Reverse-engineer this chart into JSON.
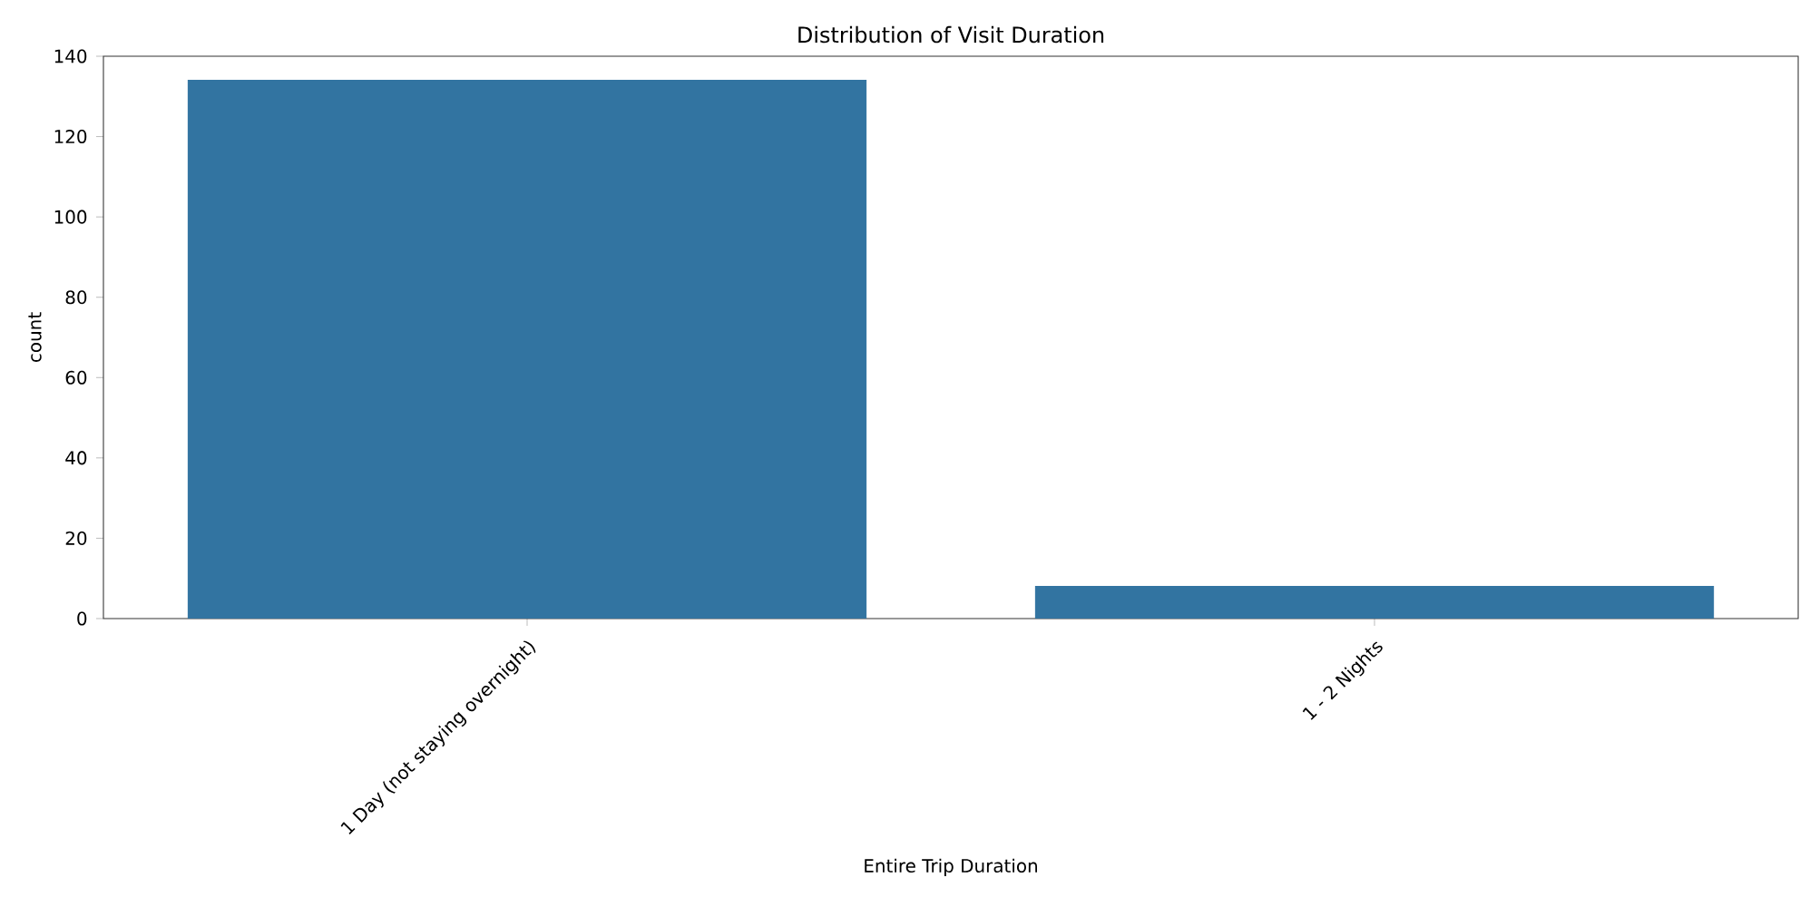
{
  "chart_data": {
    "type": "bar",
    "title": "Distribution of Visit Duration",
    "xlabel": "Entire Trip Duration",
    "ylabel": "count",
    "categories": [
      "1 Day (not staying overnight)",
      "1 - 2 Nights"
    ],
    "values": [
      134,
      8
    ],
    "color": "#3274a1",
    "ylim": [
      0,
      140
    ],
    "yticks": [
      0,
      20,
      40,
      60,
      80,
      100,
      120,
      140
    ]
  }
}
